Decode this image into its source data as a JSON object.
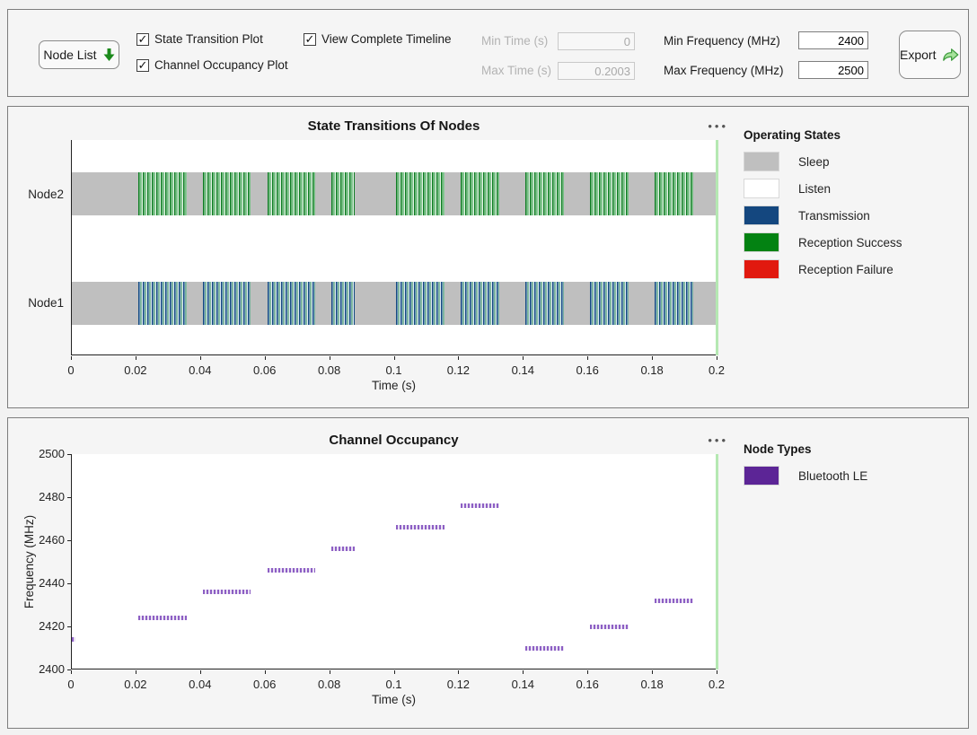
{
  "toolbar": {
    "node_list_label": "Node List",
    "checkboxes": [
      {
        "label": "State Transition Plot",
        "checked": true
      },
      {
        "label": "Channel Occupancy Plot",
        "checked": true
      },
      {
        "label": "View Complete Timeline",
        "checked": true
      }
    ],
    "min_time": {
      "label": "Min Time (s)",
      "value": "0",
      "disabled": true
    },
    "max_time": {
      "label": "Max Time (s)",
      "value": "0.2003",
      "disabled": true
    },
    "min_freq": {
      "label": "Min Frequency (MHz)",
      "value": "2400",
      "disabled": false
    },
    "max_freq": {
      "label": "Max Frequency (MHz)",
      "value": "2500",
      "disabled": false
    },
    "export_label": "Export"
  },
  "icons": {
    "menu_glyph": "•••",
    "check_glyph": "✓"
  },
  "colors": {
    "sleep": "#bfbfbf",
    "listen": "#ffffff",
    "transmission": "#14477f",
    "reception_success": "#038212",
    "reception_failure": "#e1190f",
    "bluetooth_le": "#5c2596",
    "segment_mark": "#8d5fc4",
    "time_cursor": "#b5e8b2",
    "panel_border": "#7d7d7d"
  },
  "chart_data": [
    {
      "type": "timeline",
      "title": "State Transitions Of Nodes",
      "xlabel": "Time (s)",
      "xlim": [
        0,
        0.2
      ],
      "x_ticks": [
        0,
        0.02,
        0.04,
        0.06,
        0.08,
        0.1,
        0.12,
        0.14,
        0.16,
        0.18,
        0.2
      ],
      "x_tick_labels": [
        "0",
        "0.02",
        "0.04",
        "0.06",
        "0.08",
        "0.1",
        "0.12",
        "0.14",
        "0.16",
        "0.18",
        "0.2"
      ],
      "rows": [
        {
          "node": "Node2",
          "base_state": "Sleep",
          "burst_pattern": "reception-success"
        },
        {
          "node": "Node1",
          "base_state": "Sleep",
          "burst_pattern": "transmission"
        }
      ],
      "bursts": [
        [
          0.0205,
          0.0355
        ],
        [
          0.0405,
          0.0555
        ],
        [
          0.0605,
          0.0755
        ],
        [
          0.0805,
          0.0875
        ],
        [
          0.1005,
          0.1155
        ],
        [
          0.1205,
          0.1325
        ],
        [
          0.1405,
          0.1525
        ],
        [
          0.1605,
          0.1725
        ],
        [
          0.1805,
          0.1925
        ]
      ],
      "timeline_cursor": 0.2,
      "legend_title": "Operating States",
      "legend_position": "right",
      "legend": [
        {
          "label": "Sleep",
          "color": "#bfbfbf"
        },
        {
          "label": "Listen",
          "color": "#ffffff"
        },
        {
          "label": "Transmission",
          "color": "#14477f"
        },
        {
          "label": "Reception Success",
          "color": "#038212"
        },
        {
          "label": "Reception Failure",
          "color": "#e1190f"
        }
      ]
    },
    {
      "type": "scatter",
      "title": "Channel Occupancy",
      "xlabel": "Time (s)",
      "ylabel": "Frequency (MHz)",
      "xlim": [
        0,
        0.2
      ],
      "ylim": [
        2400,
        2500
      ],
      "x_tick_labels": [
        "0",
        "0.02",
        "0.04",
        "0.06",
        "0.08",
        "0.1",
        "0.12",
        "0.14",
        "0.16",
        "0.18",
        "0.2"
      ],
      "y_ticks": [
        2400,
        2420,
        2440,
        2460,
        2480,
        2500
      ],
      "timeline_cursor": 0.2,
      "legend_title": "Node Types",
      "legend_position": "right",
      "legend": [
        {
          "label": "Bluetooth LE",
          "color": "#5c2596"
        }
      ],
      "segments": [
        {
          "t0": 0.0,
          "t1": 0.001,
          "freq": 2414
        },
        {
          "t0": 0.0205,
          "t1": 0.0355,
          "freq": 2424
        },
        {
          "t0": 0.0405,
          "t1": 0.0555,
          "freq": 2436
        },
        {
          "t0": 0.0605,
          "t1": 0.0755,
          "freq": 2446
        },
        {
          "t0": 0.0805,
          "t1": 0.0875,
          "freq": 2456
        },
        {
          "t0": 0.1005,
          "t1": 0.1155,
          "freq": 2466
        },
        {
          "t0": 0.1205,
          "t1": 0.1325,
          "freq": 2476
        },
        {
          "t0": 0.1405,
          "t1": 0.1525,
          "freq": 2410
        },
        {
          "t0": 0.1605,
          "t1": 0.1725,
          "freq": 2420
        },
        {
          "t0": 0.1805,
          "t1": 0.1925,
          "freq": 2432
        },
        {
          "t0": 0.1995,
          "t1": 0.2,
          "freq": 2443
        }
      ]
    }
  ]
}
